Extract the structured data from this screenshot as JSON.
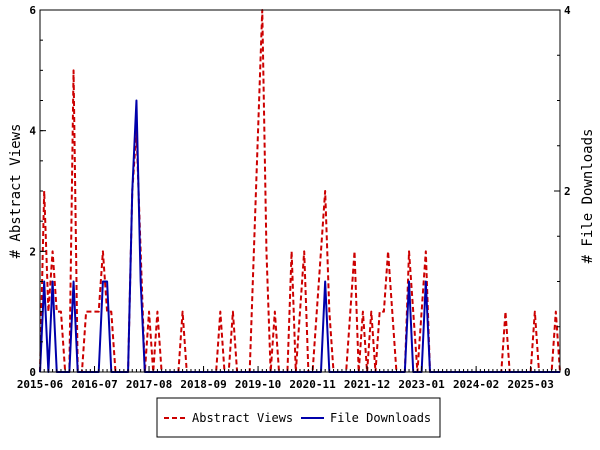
{
  "chart_data": {
    "type": "line",
    "title": "",
    "xlabel": "",
    "ylabel": "# Abstract Views",
    "ylabel_right": "# File Downloads",
    "x_ticks": [
      "2015-06",
      "2016-07",
      "2017-08",
      "2018-09",
      "2019-10",
      "2020-11",
      "2021-12",
      "2023-01",
      "2024-02",
      "2025-03"
    ],
    "y_ticks_left": [
      "0",
      "2",
      "4",
      "6"
    ],
    "y_ticks_right": [
      "0",
      "2",
      "4"
    ],
    "ylim_left": [
      0,
      6
    ],
    "ylim_right": [
      0,
      4
    ],
    "xlim_months": [
      0,
      124
    ],
    "grid": false,
    "legend_position": "bottom-center",
    "series": [
      {
        "name": "Abstract Views",
        "axis": "left",
        "color": "#cc0000",
        "dash": "dashed",
        "points": [
          [
            0,
            0
          ],
          [
            1,
            3
          ],
          [
            2,
            1
          ],
          [
            3,
            2
          ],
          [
            4,
            1
          ],
          [
            5,
            1
          ],
          [
            6,
            0
          ],
          [
            7,
            0
          ],
          [
            8,
            5
          ],
          [
            9,
            0
          ],
          [
            10,
            0
          ],
          [
            11,
            1
          ],
          [
            12,
            1
          ],
          [
            13,
            1
          ],
          [
            14,
            1
          ],
          [
            15,
            2
          ],
          [
            16,
            1
          ],
          [
            17,
            1
          ],
          [
            18,
            0
          ],
          [
            19,
            0
          ],
          [
            20,
            0
          ],
          [
            21,
            0
          ],
          [
            22,
            3
          ],
          [
            23,
            4
          ],
          [
            24,
            2
          ],
          [
            25,
            0
          ],
          [
            26,
            1
          ],
          [
            27,
            0
          ],
          [
            28,
            1
          ],
          [
            29,
            0
          ],
          [
            30,
            0
          ],
          [
            31,
            0
          ],
          [
            32,
            0
          ],
          [
            33,
            0
          ],
          [
            34,
            1
          ],
          [
            35,
            0
          ],
          [
            36,
            0
          ],
          [
            37,
            0
          ],
          [
            38,
            0
          ],
          [
            39,
            0
          ],
          [
            40,
            0
          ],
          [
            41,
            0
          ],
          [
            42,
            0
          ],
          [
            43,
            1
          ],
          [
            44,
            0
          ],
          [
            45,
            0
          ],
          [
            46,
            1
          ],
          [
            47,
            0
          ],
          [
            48,
            0
          ],
          [
            49,
            0
          ],
          [
            50,
            0
          ],
          [
            51,
            2
          ],
          [
            52,
            4
          ],
          [
            53,
            6
          ],
          [
            54,
            2
          ],
          [
            55,
            0
          ],
          [
            56,
            1
          ],
          [
            57,
            0
          ],
          [
            58,
            0
          ],
          [
            59,
            0
          ],
          [
            60,
            2
          ],
          [
            61,
            0
          ],
          [
            62,
            1
          ],
          [
            63,
            2
          ],
          [
            64,
            0
          ],
          [
            65,
            0
          ],
          [
            66,
            1
          ],
          [
            67,
            2
          ],
          [
            68,
            3
          ],
          [
            69,
            1
          ],
          [
            70,
            0
          ],
          [
            71,
            0
          ],
          [
            72,
            0
          ],
          [
            73,
            0
          ],
          [
            74,
            1
          ],
          [
            75,
            2
          ],
          [
            76,
            0
          ],
          [
            77,
            1
          ],
          [
            78,
            0
          ],
          [
            79,
            1
          ],
          [
            80,
            0
          ],
          [
            81,
            1
          ],
          [
            82,
            1
          ],
          [
            83,
            2
          ],
          [
            84,
            1
          ],
          [
            85,
            0
          ],
          [
            86,
            0
          ],
          [
            87,
            0
          ],
          [
            88,
            2
          ],
          [
            89,
            1
          ],
          [
            90,
            0
          ],
          [
            91,
            1
          ],
          [
            92,
            2
          ],
          [
            93,
            0
          ],
          [
            94,
            0
          ],
          [
            95,
            0
          ],
          [
            96,
            0
          ],
          [
            97,
            0
          ],
          [
            98,
            0
          ],
          [
            99,
            0
          ],
          [
            100,
            0
          ],
          [
            101,
            0
          ],
          [
            102,
            0
          ],
          [
            103,
            0
          ],
          [
            104,
            0
          ],
          [
            105,
            0
          ],
          [
            106,
            0
          ],
          [
            107,
            0
          ],
          [
            108,
            0
          ],
          [
            109,
            0
          ],
          [
            110,
            0
          ],
          [
            111,
            1
          ],
          [
            112,
            0
          ],
          [
            113,
            0
          ],
          [
            114,
            0
          ],
          [
            115,
            0
          ],
          [
            116,
            0
          ],
          [
            117,
            0
          ],
          [
            118,
            1
          ],
          [
            119,
            0
          ],
          [
            120,
            0
          ],
          [
            121,
            0
          ],
          [
            122,
            0
          ],
          [
            123,
            1
          ],
          [
            124,
            0
          ]
        ]
      },
      {
        "name": "File Downloads",
        "axis": "right",
        "color": "#0000aa",
        "dash": "solid",
        "points": [
          [
            0,
            0
          ],
          [
            1,
            1
          ],
          [
            2,
            0
          ],
          [
            3,
            1
          ],
          [
            4,
            0
          ],
          [
            5,
            0
          ],
          [
            6,
            0
          ],
          [
            7,
            0
          ],
          [
            8,
            1
          ],
          [
            9,
            0
          ],
          [
            10,
            0
          ],
          [
            11,
            0
          ],
          [
            12,
            0
          ],
          [
            13,
            0
          ],
          [
            14,
            0
          ],
          [
            15,
            1
          ],
          [
            16,
            1
          ],
          [
            17,
            0
          ],
          [
            18,
            0
          ],
          [
            19,
            0
          ],
          [
            20,
            0
          ],
          [
            21,
            0
          ],
          [
            22,
            2
          ],
          [
            23,
            3
          ],
          [
            24,
            1
          ],
          [
            25,
            0
          ],
          [
            26,
            0
          ],
          [
            27,
            0
          ],
          [
            28,
            0
          ],
          [
            29,
            0
          ],
          [
            30,
            0
          ],
          [
            31,
            0
          ],
          [
            32,
            0
          ],
          [
            33,
            0
          ],
          [
            34,
            0
          ],
          [
            35,
            0
          ],
          [
            36,
            0
          ],
          [
            37,
            0
          ],
          [
            38,
            0
          ],
          [
            39,
            0
          ],
          [
            40,
            0
          ],
          [
            41,
            0
          ],
          [
            42,
            0
          ],
          [
            43,
            0
          ],
          [
            44,
            0
          ],
          [
            45,
            0
          ],
          [
            46,
            0
          ],
          [
            47,
            0
          ],
          [
            48,
            0
          ],
          [
            49,
            0
          ],
          [
            50,
            0
          ],
          [
            51,
            0
          ],
          [
            52,
            0
          ],
          [
            53,
            0
          ],
          [
            54,
            0
          ],
          [
            55,
            0
          ],
          [
            56,
            0
          ],
          [
            57,
            0
          ],
          [
            58,
            0
          ],
          [
            59,
            0
          ],
          [
            60,
            0
          ],
          [
            61,
            0
          ],
          [
            62,
            0
          ],
          [
            63,
            0
          ],
          [
            64,
            0
          ],
          [
            65,
            0
          ],
          [
            66,
            0
          ],
          [
            67,
            0
          ],
          [
            68,
            1
          ],
          [
            69,
            0
          ],
          [
            70,
            0
          ],
          [
            71,
            0
          ],
          [
            72,
            0
          ],
          [
            73,
            0
          ],
          [
            74,
            0
          ],
          [
            75,
            0
          ],
          [
            76,
            0
          ],
          [
            77,
            0
          ],
          [
            78,
            0
          ],
          [
            79,
            0
          ],
          [
            80,
            0
          ],
          [
            81,
            0
          ],
          [
            82,
            0
          ],
          [
            83,
            0
          ],
          [
            84,
            0
          ],
          [
            85,
            0
          ],
          [
            86,
            0
          ],
          [
            87,
            0
          ],
          [
            88,
            1
          ],
          [
            89,
            0
          ],
          [
            90,
            0
          ],
          [
            91,
            0
          ],
          [
            92,
            1
          ],
          [
            93,
            0
          ],
          [
            94,
            0
          ],
          [
            95,
            0
          ],
          [
            96,
            0
          ],
          [
            97,
            0
          ],
          [
            98,
            0
          ],
          [
            99,
            0
          ],
          [
            100,
            0
          ],
          [
            101,
            0
          ],
          [
            102,
            0
          ],
          [
            103,
            0
          ],
          [
            104,
            0
          ],
          [
            105,
            0
          ],
          [
            106,
            0
          ],
          [
            107,
            0
          ],
          [
            108,
            0
          ],
          [
            109,
            0
          ],
          [
            110,
            0
          ],
          [
            111,
            0
          ],
          [
            112,
            0
          ],
          [
            113,
            0
          ],
          [
            114,
            0
          ],
          [
            115,
            0
          ],
          [
            116,
            0
          ],
          [
            117,
            0
          ],
          [
            118,
            0
          ],
          [
            119,
            0
          ],
          [
            120,
            0
          ],
          [
            121,
            0
          ],
          [
            122,
            0
          ],
          [
            123,
            0
          ],
          [
            124,
            0
          ]
        ]
      }
    ]
  }
}
